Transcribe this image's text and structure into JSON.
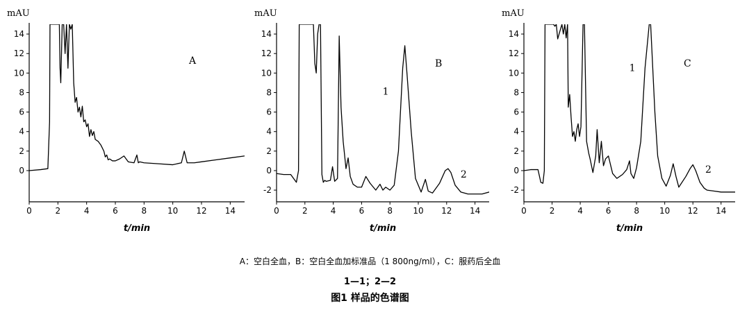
{
  "figure": {
    "caption_legend": "A：空白全血，B：空白全血加标准品（1 800ng/ml），C：服药后全血",
    "caption_peaks": "1—1；2—2",
    "caption_title": "图1 样品的色谱图"
  },
  "chart_data": [
    {
      "type": "line",
      "panel_label": "A",
      "ylabel": "mAU",
      "xlabel": "t/min",
      "xlim": [
        0,
        15
      ],
      "ylim": [
        -3.2,
        15
      ],
      "xticks": [
        0,
        2,
        4,
        6,
        8,
        10,
        12,
        14
      ],
      "yticks": [
        0,
        2,
        4,
        6,
        8,
        10,
        12,
        14
      ],
      "grid": false,
      "peak_labels": [],
      "series": [
        {
          "x": [
            0,
            0.8,
            1.3,
            1.42,
            1.45,
            2.1,
            2.15,
            2.2,
            2.3,
            2.4,
            2.5,
            2.6,
            2.7,
            2.8,
            2.9,
            3.0,
            3.1,
            3.2,
            3.3,
            3.4,
            3.5,
            3.6,
            3.7,
            3.8,
            3.9,
            4.0,
            4.1,
            4.2,
            4.3,
            4.4,
            4.5,
            4.6,
            4.8,
            5.0,
            5.2,
            5.3,
            5.4,
            5.5,
            5.6,
            5.8,
            6.0,
            6.3,
            6.6,
            6.9,
            7.3,
            7.5,
            7.6,
            7.7,
            8.0,
            9.0,
            10.0,
            10.6,
            10.8,
            11.0,
            11.5,
            12.0,
            13.0,
            14.0,
            15.0
          ],
          "y": [
            0,
            0.1,
            0.2,
            5,
            15,
            15,
            10.5,
            9,
            15,
            15,
            12,
            15,
            10.5,
            15,
            14.5,
            15,
            9,
            7,
            7.5,
            6,
            6.5,
            5.5,
            6.6,
            5,
            5.2,
            4.5,
            4.8,
            3.5,
            4.2,
            3.6,
            4.0,
            3.2,
            3.0,
            2.6,
            2.0,
            1.4,
            1.6,
            1.1,
            1.2,
            1.0,
            1.0,
            1.2,
            1.5,
            0.9,
            0.8,
            1.6,
            0.8,
            0.9,
            0.8,
            0.7,
            0.6,
            0.8,
            2.0,
            0.8,
            0.8,
            0.9,
            1.1,
            1.3,
            1.5
          ]
        }
      ]
    },
    {
      "type": "line",
      "panel_label": "B",
      "ylabel": "mAU",
      "xlabel": "t/min",
      "xlim": [
        0,
        15
      ],
      "ylim": [
        -3.2,
        15
      ],
      "xticks": [
        0,
        2,
        4,
        6,
        8,
        10,
        12,
        14
      ],
      "yticks": [
        -2,
        0,
        2,
        4,
        6,
        8,
        10,
        12,
        14
      ],
      "grid": false,
      "peak_labels": [
        {
          "text": "1",
          "x": 7.7,
          "y": 7.8
        },
        {
          "text": "2",
          "x": 13.2,
          "y": -0.7
        }
      ],
      "series": [
        {
          "x": [
            0,
            0.5,
            1.0,
            1.4,
            1.55,
            1.6,
            2.6,
            2.7,
            2.8,
            2.9,
            3.0,
            3.1,
            3.2,
            3.3,
            3.4,
            3.5,
            3.8,
            3.95,
            4.1,
            4.3,
            4.42,
            4.55,
            4.7,
            4.9,
            5.05,
            5.2,
            5.4,
            5.7,
            6.0,
            6.3,
            6.6,
            7.0,
            7.3,
            7.5,
            7.7,
            8.0,
            8.3,
            8.6,
            8.9,
            9.05,
            9.2,
            9.5,
            9.8,
            10.2,
            10.5,
            10.7,
            11.0,
            11.5,
            11.9,
            12.1,
            12.3,
            12.6,
            13.0,
            13.5,
            14.0,
            14.5,
            15.0
          ],
          "y": [
            -0.3,
            -0.4,
            -0.4,
            -1.2,
            0,
            15,
            15,
            11,
            10,
            14,
            15,
            15,
            -0.4,
            -1.2,
            -1.0,
            -1.1,
            -1.0,
            0.4,
            -1.1,
            -0.8,
            13.8,
            6.5,
            3.0,
            0.2,
            1.3,
            -0.6,
            -1.4,
            -1.7,
            -1.7,
            -0.6,
            -1.3,
            -2.0,
            -1.4,
            -2.0,
            -1.7,
            -2.0,
            -1.5,
            2.0,
            10.5,
            12.8,
            10.0,
            4.0,
            -0.8,
            -2.2,
            -0.9,
            -2.1,
            -2.3,
            -1.3,
            0.0,
            0.2,
            -0.2,
            -1.5,
            -2.2,
            -2.4,
            -2.4,
            -2.4,
            -2.2
          ]
        }
      ]
    },
    {
      "type": "line",
      "panel_label": "C",
      "ylabel": "mAU",
      "xlabel": "t/min",
      "xlim": [
        0,
        15
      ],
      "ylim": [
        -3.2,
        15
      ],
      "xticks": [
        0,
        2,
        4,
        6,
        8,
        10,
        12,
        14
      ],
      "yticks": [
        -2,
        0,
        2,
        4,
        6,
        8,
        10,
        12,
        14
      ],
      "grid": false,
      "peak_labels": [
        {
          "text": "1",
          "x": 7.7,
          "y": 10.2
        },
        {
          "text": "2",
          "x": 13.1,
          "y": -0.2
        }
      ],
      "series": [
        {
          "x": [
            0,
            0.5,
            1.0,
            1.2,
            1.35,
            1.45,
            1.5,
            2.1,
            2.2,
            2.3,
            2.4,
            2.7,
            2.8,
            2.9,
            3.0,
            3.1,
            3.15,
            3.25,
            3.35,
            3.45,
            3.55,
            3.65,
            3.75,
            3.85,
            3.95,
            4.05,
            4.2,
            4.3,
            4.45,
            4.6,
            4.7,
            4.9,
            5.1,
            5.2,
            5.35,
            5.5,
            5.65,
            5.8,
            6.0,
            6.3,
            6.6,
            7.0,
            7.3,
            7.5,
            7.6,
            7.8,
            8.0,
            8.3,
            8.6,
            8.9,
            9.0,
            9.3,
            9.5,
            9.8,
            10.1,
            10.4,
            10.6,
            10.8,
            11.0,
            11.5,
            11.8,
            12.0,
            12.2,
            12.5,
            12.8,
            13.0,
            13.5,
            14.0,
            15.0
          ],
          "y": [
            0,
            0.1,
            0.1,
            -1.2,
            -1.3,
            0,
            15,
            15,
            14.8,
            15,
            13.5,
            15,
            14.0,
            15,
            13.6,
            15,
            6.5,
            7.8,
            5.5,
            3.5,
            4.0,
            3.0,
            4.2,
            4.8,
            3.5,
            4.5,
            15,
            15,
            3.0,
            1.8,
            1.2,
            -0.2,
            1.5,
            4.2,
            0.8,
            3.0,
            0.5,
            1.2,
            1.5,
            -0.3,
            -0.8,
            -0.4,
            0.1,
            1.0,
            -0.3,
            -0.8,
            0.3,
            3.0,
            10.5,
            15,
            15,
            6.0,
            1.5,
            -0.8,
            -1.6,
            -0.5,
            0.7,
            -0.6,
            -1.7,
            -0.6,
            0.2,
            0.6,
            0.0,
            -1.2,
            -1.8,
            -2.0,
            -2.1,
            -2.2,
            -2.2
          ]
        }
      ]
    }
  ]
}
